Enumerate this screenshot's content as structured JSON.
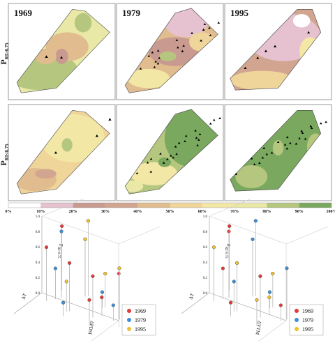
{
  "maps": {
    "years": [
      "1969",
      "1979",
      "1995"
    ],
    "rows": [
      {
        "main": "P",
        "sub": "RI>0.75"
      },
      {
        "main": "P",
        "sub": "RI<0.75"
      }
    ]
  },
  "colorbar": {
    "ticks": [
      "0%",
      "10%",
      "20%",
      "30%",
      "40%",
      "50%",
      "60%",
      "70%",
      "80%",
      "90%",
      "100%"
    ]
  },
  "scatter_plots": [
    {
      "z_label": {
        "main": "P",
        "sub": "RI<0.75"
      },
      "x_label": "ΔPDSI",
      "y_label": "ΔT",
      "zticks": [
        "0.0",
        "0.2",
        "0.4",
        "0.6",
        "0.8",
        "1.0"
      ],
      "legend": [
        "1969",
        "1979",
        "1995"
      ]
    },
    {
      "z_label": {
        "main": "P",
        "sub": "RI>0.75"
      },
      "x_label": "ΔVTM",
      "y_label": "ΔT",
      "zticks": [
        "0.0",
        "0.2",
        "0.4",
        "0.6",
        "0.8",
        "1.0"
      ],
      "legend": [
        "1969",
        "1979",
        "1995"
      ]
    }
  ]
}
